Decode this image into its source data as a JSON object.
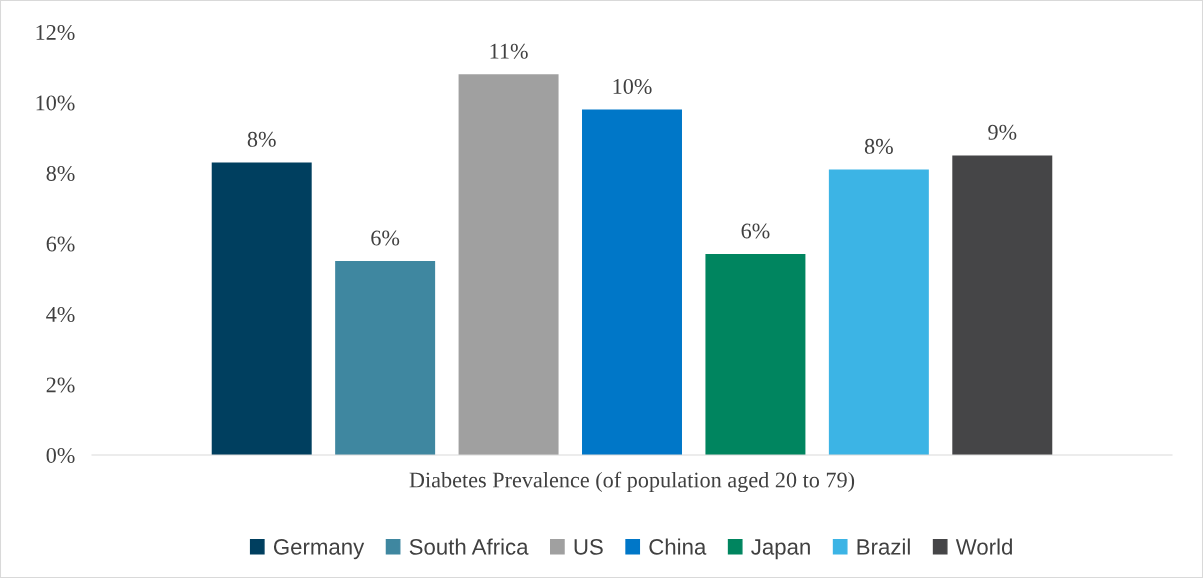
{
  "chart_data": {
    "type": "bar",
    "categories": [
      "Diabetes Prevalence (of population aged 20 to 79)"
    ],
    "series": [
      {
        "name": "Germany",
        "color": "#003f5f",
        "values": [
          8.3
        ],
        "value_labels": [
          "8%"
        ]
      },
      {
        "name": "South Africa",
        "color": "#3f87a0",
        "values": [
          5.5
        ],
        "value_labels": [
          "6%"
        ]
      },
      {
        "name": "US",
        "color": "#a0a0a0",
        "values": [
          10.8
        ],
        "value_labels": [
          "11%"
        ]
      },
      {
        "name": "China",
        "color": "#0077c8",
        "values": [
          9.8
        ],
        "value_labels": [
          "10%"
        ]
      },
      {
        "name": "Japan",
        "color": "#00855f",
        "values": [
          5.7
        ],
        "value_labels": [
          "6%"
        ]
      },
      {
        "name": "Brazil",
        "color": "#3cb4e5",
        "values": [
          8.1
        ],
        "value_labels": [
          "8%"
        ]
      },
      {
        "name": "World",
        "color": "#454547",
        "values": [
          8.5
        ],
        "value_labels": [
          "9%"
        ]
      }
    ],
    "ylim": [
      0,
      12
    ],
    "yticks": [
      {
        "value": 0,
        "label": "0%"
      },
      {
        "value": 2,
        "label": "2%"
      },
      {
        "value": 4,
        "label": "4%"
      },
      {
        "value": 6,
        "label": "6%"
      },
      {
        "value": 8,
        "label": "8%"
      },
      {
        "value": 10,
        "label": "10%"
      },
      {
        "value": 12,
        "label": "12%"
      }
    ],
    "legend": "bottom"
  }
}
